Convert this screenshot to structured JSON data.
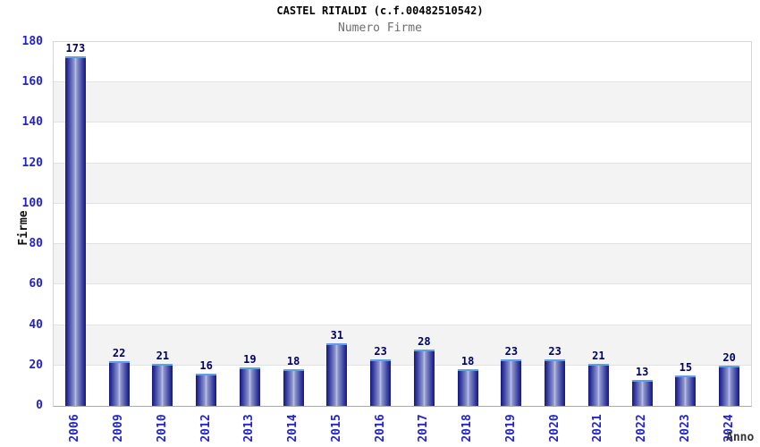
{
  "header": {
    "title": "CASTEL RITALDI (c.f.00482510542)",
    "subtitle": "Numero Firme"
  },
  "chart_data": {
    "type": "bar",
    "title": "CASTEL RITALDI (c.f.00482510542)",
    "subtitle": "Numero Firme",
    "xlabel": "Anno",
    "ylabel": "Firme",
    "categories": [
      "2006",
      "2009",
      "2010",
      "2012",
      "2013",
      "2014",
      "2015",
      "2016",
      "2017",
      "2018",
      "2019",
      "2020",
      "2021",
      "2022",
      "2023",
      "2024"
    ],
    "values": [
      173,
      22,
      21,
      16,
      19,
      18,
      31,
      23,
      28,
      18,
      23,
      23,
      21,
      13,
      15,
      20
    ],
    "ylim": [
      0,
      180
    ],
    "ytick_step": 20,
    "grid": "horizontal-alternating-bands",
    "legend": "none",
    "bar_labels": true
  },
  "colors": {
    "tick_label_blue": "#2323cc",
    "value_label_navy": "#000066",
    "bar_edge": "#18187a",
    "bar_center": "#c0c6e6",
    "bar_cap_blue": "#5ea0e8",
    "band_gray": "#f3f3f3",
    "grid_line": "#e2e2e2",
    "plot_border": "#d5d5d5",
    "axis_line": "#a9a9a9",
    "subtitle_gray": "#6e6e6e"
  }
}
